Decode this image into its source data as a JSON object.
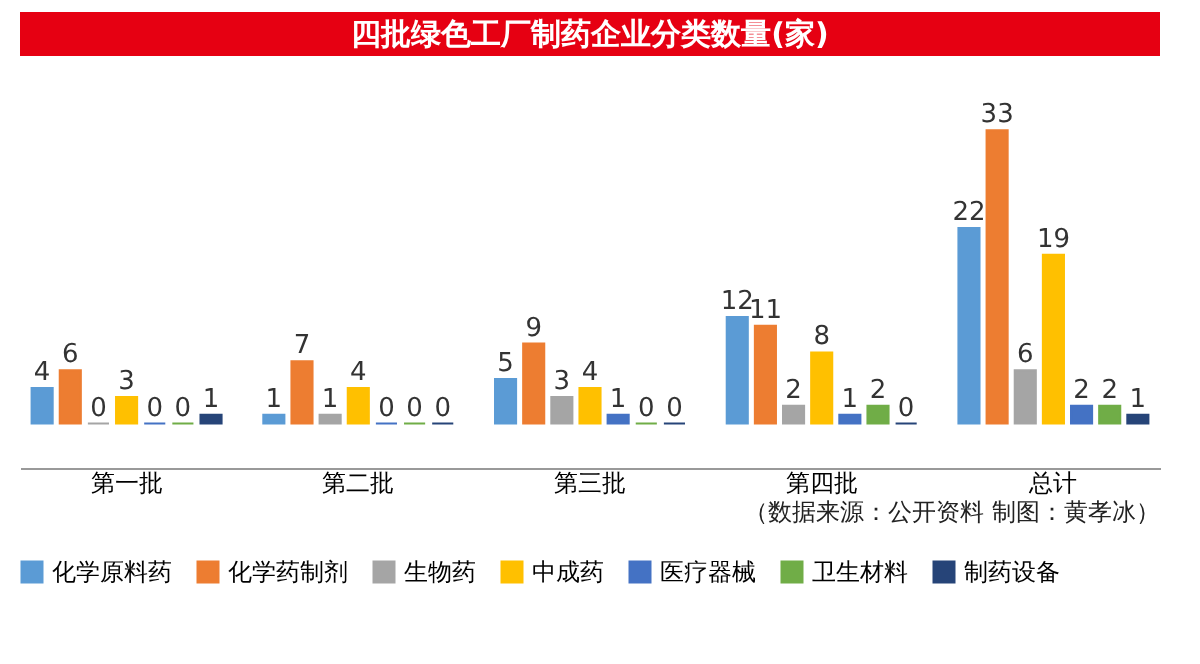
{
  "chart_data": {
    "type": "bar",
    "title": "四批绿色工厂制药企业分类数量(家)",
    "categories": [
      "第一批",
      "第二批",
      "第三批",
      "第四批",
      "总计"
    ],
    "series": [
      {
        "name": "化学原料药",
        "color": "#5b9bd5",
        "values": [
          4,
          1,
          5,
          12,
          22
        ]
      },
      {
        "name": "化学药制剂",
        "color": "#ed7d31",
        "values": [
          6,
          7,
          9,
          11,
          33
        ]
      },
      {
        "name": "生物药",
        "color": "#a5a5a5",
        "values": [
          0,
          1,
          3,
          2,
          6
        ]
      },
      {
        "name": "中成药",
        "color": "#ffc000",
        "values": [
          3,
          4,
          4,
          8,
          19
        ]
      },
      {
        "name": "医疗器械",
        "color": "#4472c4",
        "values": [
          0,
          0,
          1,
          1,
          2
        ]
      },
      {
        "name": "卫生材料",
        "color": "#70ad47",
        "values": [
          0,
          0,
          0,
          2,
          2
        ]
      },
      {
        "name": "制药设备",
        "color": "#264478",
        "values": [
          1,
          0,
          0,
          0,
          1
        ]
      }
    ],
    "data_labels": true,
    "legend": "bottom",
    "grid": false,
    "annotations": [
      "（数据来源：公开资料  制图：黄孝冰）"
    ]
  }
}
